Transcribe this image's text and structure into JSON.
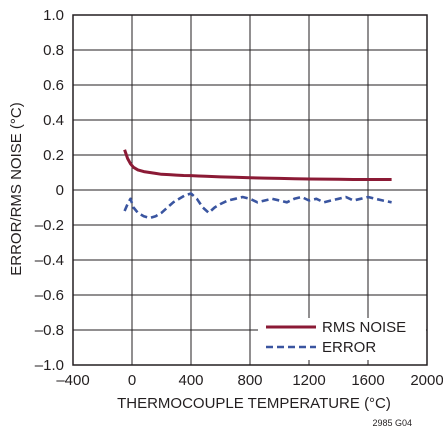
{
  "chart_data": {
    "type": "line",
    "title": "",
    "xlabel": "THERMOCOUPLE TEMPERATURE (°C)",
    "ylabel": "ERROR/RMS NOISE (°C)",
    "xlim": [
      -400,
      2000
    ],
    "ylim": [
      -1.0,
      1.0
    ],
    "x_ticks": [
      -400,
      0,
      400,
      800,
      1200,
      1600,
      2000
    ],
    "x_tick_labels": [
      "–400",
      "0",
      "400",
      "800",
      "1200",
      "1600",
      "2000"
    ],
    "y_ticks": [
      1.0,
      0.8,
      0.6,
      0.4,
      0.2,
      0,
      -0.2,
      -0.4,
      -0.6,
      -0.8,
      -1.0
    ],
    "y_tick_labels": [
      "1.0",
      "0.8",
      "0.6",
      "0.4",
      "0.2",
      "0",
      "–0.2",
      "–0.4",
      "–0.6",
      "–0.8",
      "–1.0"
    ],
    "grid": true,
    "legend_position": "bottom-right",
    "figure_id": "2985 G04",
    "series": [
      {
        "name": "RMS NOISE",
        "color": "#8b1a35",
        "style": "solid",
        "x": [
          -50,
          -30,
          -10,
          10,
          40,
          80,
          120,
          160,
          200,
          250,
          300,
          350,
          400,
          450,
          500,
          600,
          700,
          800,
          900,
          1000,
          1100,
          1200,
          1300,
          1400,
          1500,
          1600,
          1700,
          1760
        ],
        "y": [
          0.23,
          0.18,
          0.15,
          0.13,
          0.115,
          0.105,
          0.1,
          0.095,
          0.09,
          0.088,
          0.085,
          0.083,
          0.082,
          0.08,
          0.078,
          0.075,
          0.073,
          0.07,
          0.068,
          0.066,
          0.064,
          0.063,
          0.062,
          0.061,
          0.06,
          0.06,
          0.06,
          0.06
        ]
      },
      {
        "name": "ERROR",
        "color": "#3a55a0",
        "style": "dashed",
        "x": [
          -50,
          -30,
          -10,
          10,
          40,
          80,
          120,
          160,
          200,
          240,
          280,
          320,
          360,
          400,
          440,
          480,
          520,
          560,
          600,
          650,
          700,
          750,
          800,
          850,
          900,
          950,
          1000,
          1050,
          1100,
          1150,
          1200,
          1250,
          1300,
          1350,
          1400,
          1450,
          1500,
          1550,
          1600,
          1650,
          1700,
          1760
        ],
        "y": [
          -0.12,
          -0.08,
          -0.05,
          -0.1,
          -0.13,
          -0.15,
          -0.16,
          -0.15,
          -0.13,
          -0.1,
          -0.07,
          -0.05,
          -0.03,
          -0.02,
          -0.05,
          -0.1,
          -0.13,
          -0.1,
          -0.08,
          -0.06,
          -0.05,
          -0.04,
          -0.05,
          -0.07,
          -0.06,
          -0.05,
          -0.06,
          -0.07,
          -0.05,
          -0.04,
          -0.06,
          -0.05,
          -0.07,
          -0.06,
          -0.05,
          -0.04,
          -0.06,
          -0.05,
          -0.04,
          -0.05,
          -0.06,
          -0.07
        ]
      }
    ]
  }
}
